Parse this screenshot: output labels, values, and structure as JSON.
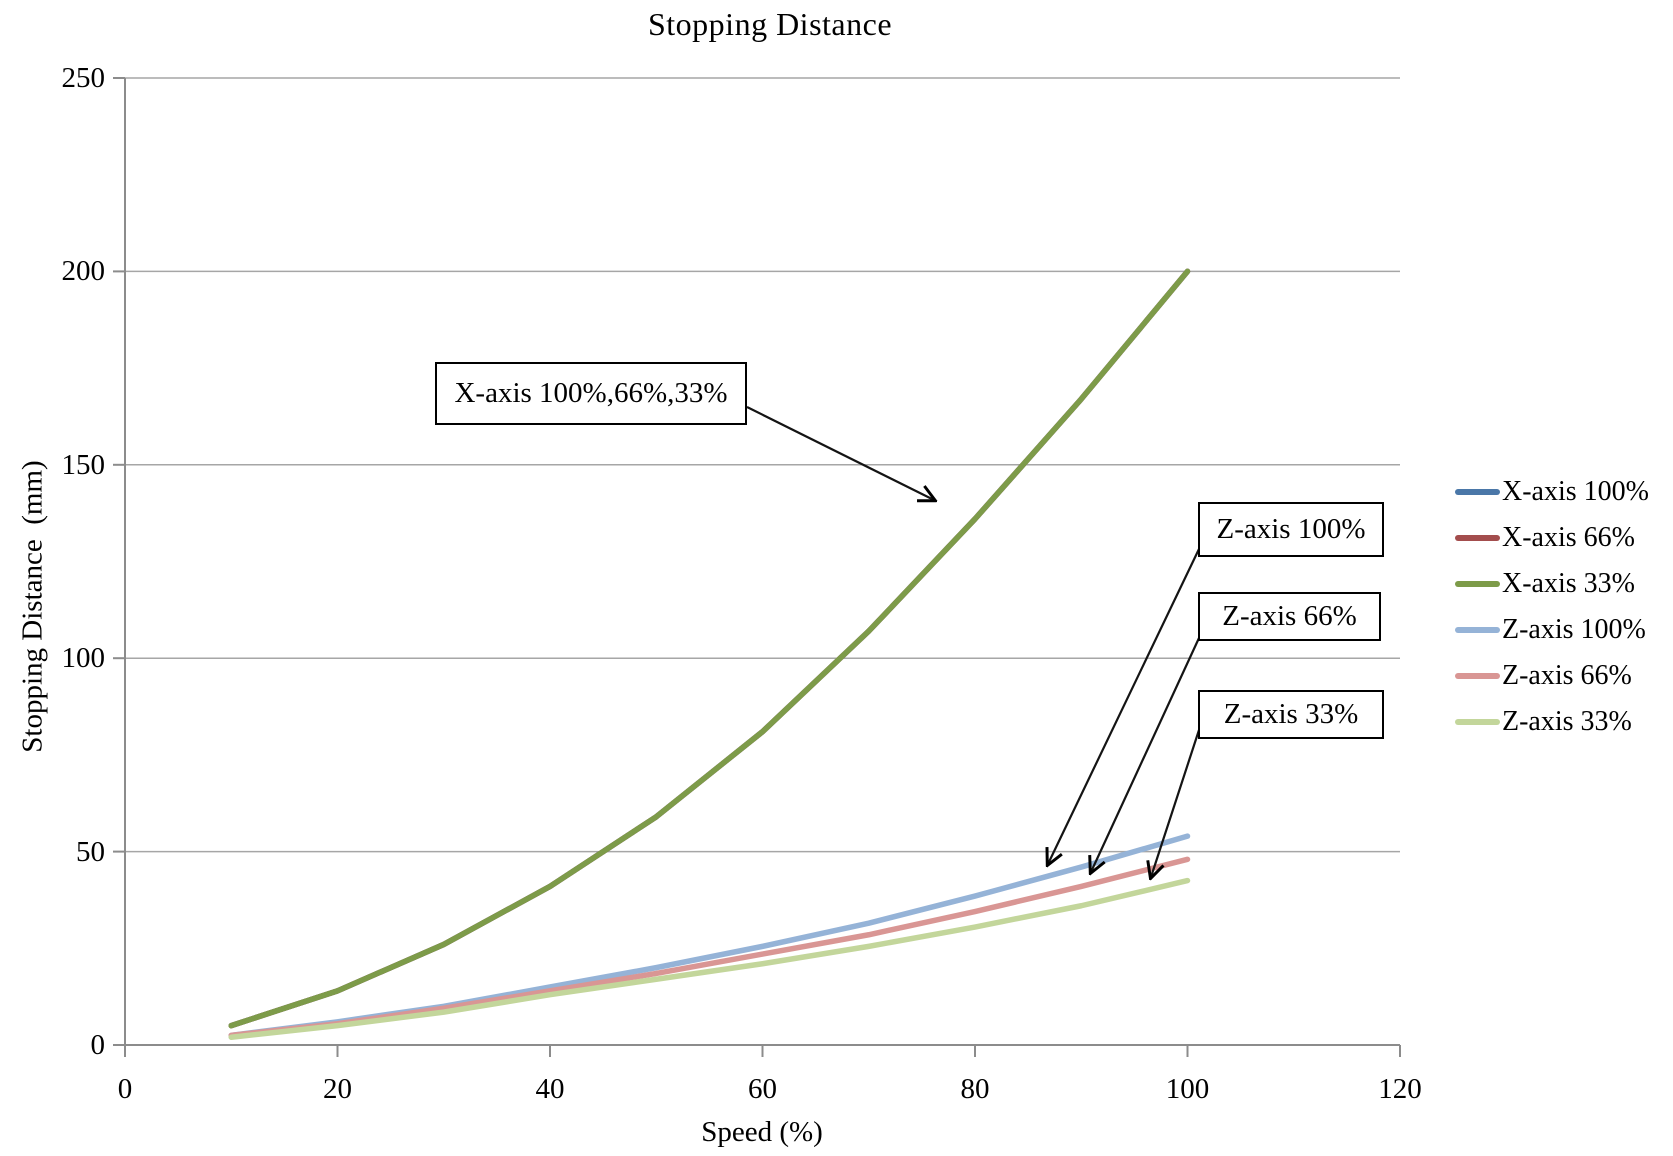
{
  "chart_data": {
    "type": "line",
    "title": "Stopping Distance",
    "xlabel": "Speed (%)",
    "ylabel": "Stopping Distance  (mm)",
    "xlim": [
      0,
      120
    ],
    "ylim": [
      0,
      250
    ],
    "x_ticks": [
      0,
      20,
      40,
      60,
      80,
      100,
      120
    ],
    "y_ticks": [
      0,
      50,
      100,
      150,
      200,
      250
    ],
    "grid": "horizontal",
    "legend_position": "right-middle",
    "x": [
      10,
      20,
      30,
      40,
      50,
      60,
      70,
      80,
      90,
      100
    ],
    "series": [
      {
        "name": "X-axis 100%",
        "color": "#4a77a8",
        "values": [
          5,
          14,
          26,
          41,
          59,
          81,
          107,
          136,
          167,
          200
        ]
      },
      {
        "name": "X-axis 66%",
        "color": "#a34d4d",
        "values": [
          5,
          14,
          26,
          41,
          59,
          81,
          107,
          136,
          167,
          200
        ]
      },
      {
        "name": "X-axis 33%",
        "color": "#7d9b49",
        "values": [
          5,
          14,
          26,
          41,
          59,
          81,
          107,
          136,
          167,
          200
        ]
      },
      {
        "name": "Z-axis 100%",
        "color": "#95b3d7",
        "values": [
          2.5,
          6,
          10,
          15,
          20,
          25.5,
          31.5,
          38.5,
          46,
          54
        ]
      },
      {
        "name": "Z-axis 66%",
        "color": "#d99694",
        "values": [
          2.5,
          5.5,
          9.5,
          14,
          18.5,
          23.5,
          28.5,
          34.5,
          41,
          48
        ]
      },
      {
        "name": "Z-axis 33%",
        "color": "#c3d69b",
        "values": [
          2,
          5,
          8.5,
          13,
          17,
          21,
          25.5,
          30.5,
          36,
          42.5
        ]
      }
    ],
    "annotations": [
      {
        "label": "X-axis 100%,66%,33%",
        "points_to": "X-axis curves near speed 80"
      },
      {
        "label": "Z-axis 100%",
        "points_to": "Z-axis 100% curve near speed 87"
      },
      {
        "label": "Z-axis 66%",
        "points_to": "Z-axis 66% curve near speed 91"
      },
      {
        "label": "Z-axis 33%",
        "points_to": "Z-axis 33% curve near speed 96"
      }
    ]
  },
  "colors": {
    "grid": "#a6a6a6",
    "axis": "#8c8c8c",
    "annotation": "#000000"
  }
}
